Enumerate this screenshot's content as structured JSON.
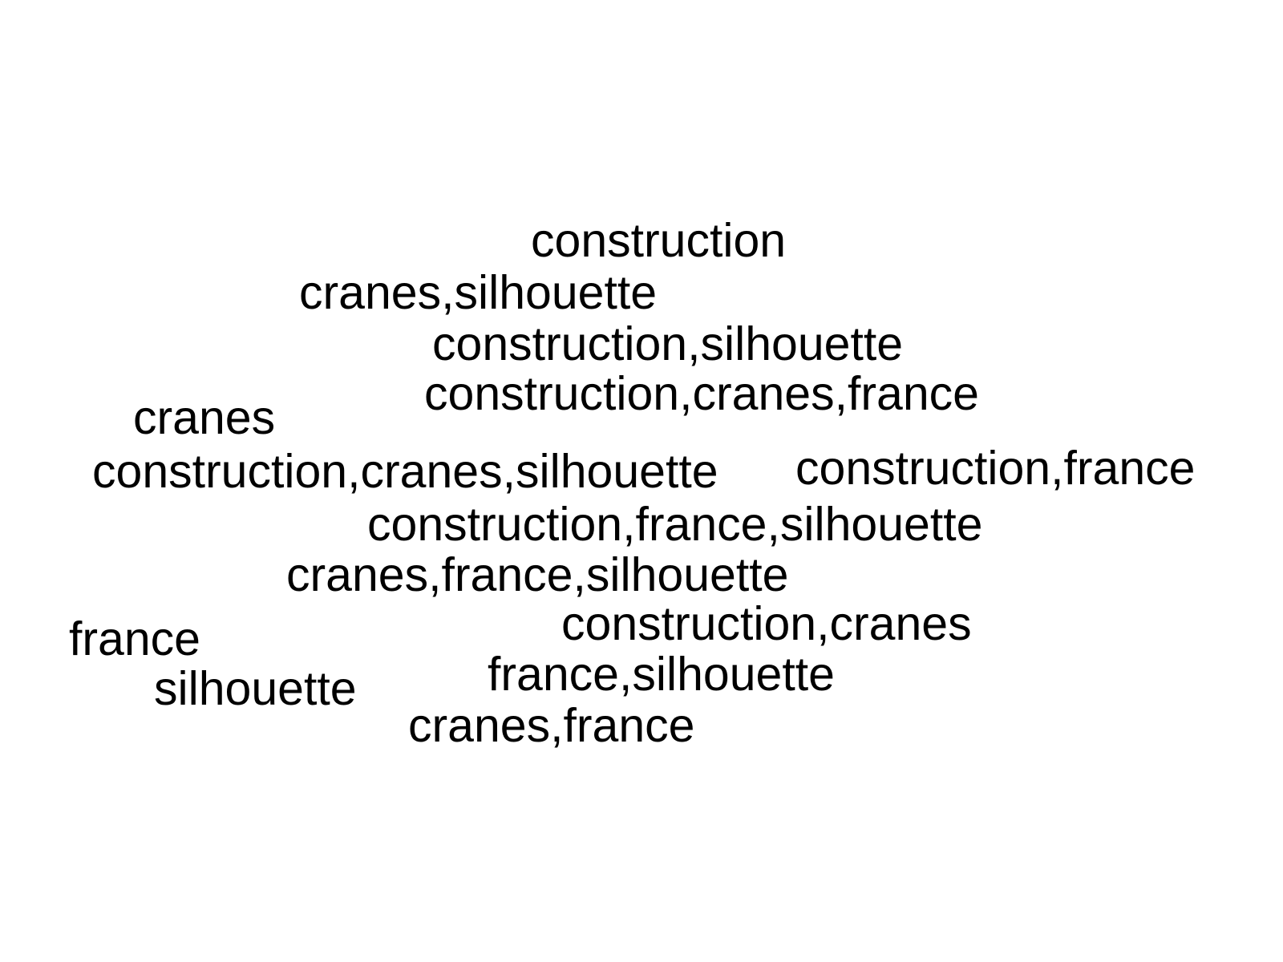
{
  "text_color": "#000000",
  "background_color": "#ffffff",
  "words": [
    "construction",
    "cranes,silhouette",
    "construction,silhouette",
    "construction,cranes,france",
    "cranes",
    "construction,cranes,silhouette",
    "construction,france",
    "construction,france,silhouette",
    "cranes,france,silhouette",
    "construction,cranes",
    "france",
    "france,silhouette",
    "silhouette",
    "cranes,france"
  ]
}
